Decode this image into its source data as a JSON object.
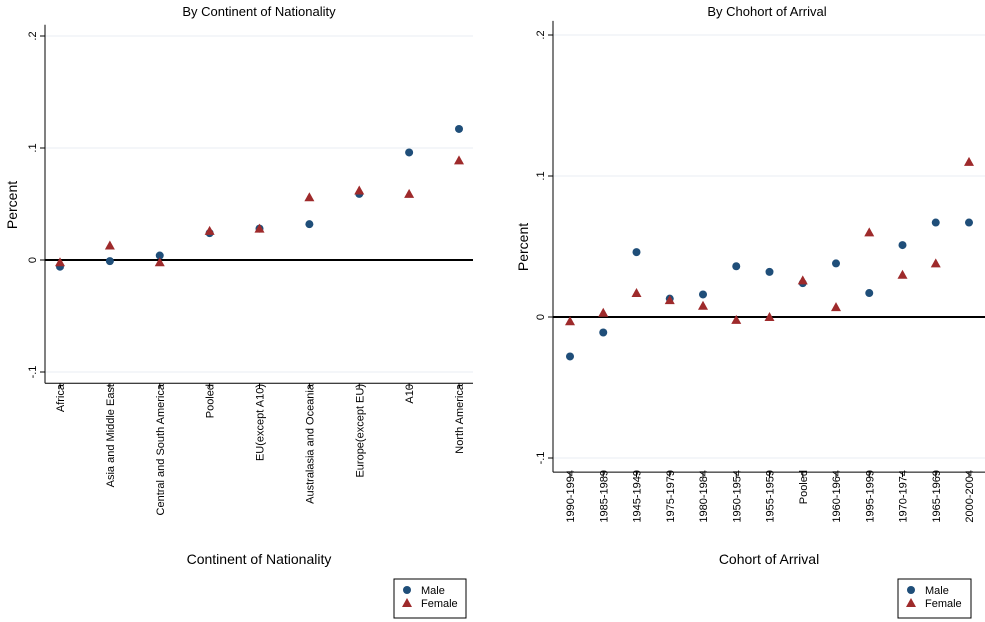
{
  "colors": {
    "male": "#1f4e79",
    "female": "#9e2a2b",
    "grid": "#e8eef3",
    "zero_line": "#000000"
  },
  "chart_data": [
    {
      "type": "scatter",
      "title": "By Continent of Nationality",
      "xlabel": "Continent of Nationality",
      "ylabel": "Percent",
      "ylim": [
        -0.11,
        0.21
      ],
      "yticks": [
        -0.1,
        0,
        0.1,
        0.2
      ],
      "ytick_labels": [
        "-.1",
        "0",
        ".1",
        ".2"
      ],
      "grid": true,
      "legend_position": "bottom-right",
      "categories": [
        "Africa",
        "Asia and Middle East",
        "Central and South America",
        "Pooled",
        "EU(except A10)",
        "Australasia and Oceania",
        "Europe(except EU)",
        "A10",
        "North America"
      ],
      "series": [
        {
          "name": "Male",
          "marker": "circle",
          "values": [
            -0.006,
            -0.001,
            0.004,
            0.024,
            0.028,
            0.032,
            0.059,
            0.096,
            0.117
          ]
        },
        {
          "name": "Female",
          "marker": "triangle",
          "values": [
            -0.002,
            0.013,
            -0.002,
            0.026,
            0.028,
            0.056,
            0.062,
            0.059,
            0.089
          ]
        }
      ]
    },
    {
      "type": "scatter",
      "title": "By Chohort of Arrival",
      "xlabel": "Cohort of Arrival",
      "ylabel": "Percent",
      "ylim": [
        -0.11,
        0.21
      ],
      "yticks": [
        -0.1,
        0,
        0.1,
        0.2
      ],
      "ytick_labels": [
        "-.1",
        "0",
        ".1",
        ".2"
      ],
      "grid": true,
      "legend_position": "bottom-right",
      "categories": [
        "1990-1994",
        "1985-1989",
        "1945-1949",
        "1975-1979",
        "1980-1984",
        "1950-1954",
        "1955-1959",
        "Pooled",
        "1960-1964",
        "1995-1999",
        "1970-1974",
        "1965-1969",
        "2000-2004"
      ],
      "series": [
        {
          "name": "Male",
          "marker": "circle",
          "values": [
            -0.028,
            -0.011,
            0.046,
            0.013,
            0.016,
            0.036,
            0.032,
            0.024,
            0.038,
            0.017,
            0.051,
            0.067,
            0.067
          ]
        },
        {
          "name": "Female",
          "marker": "triangle",
          "values": [
            -0.003,
            0.003,
            0.017,
            0.012,
            0.008,
            -0.002,
            0.0,
            0.026,
            0.007,
            0.06,
            0.03,
            0.038,
            0.11
          ]
        }
      ]
    }
  ]
}
